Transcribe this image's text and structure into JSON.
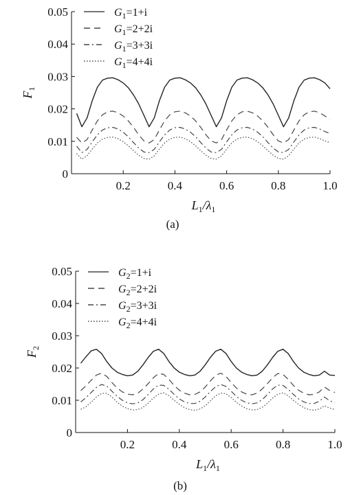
{
  "chart_data": [
    {
      "type": "line",
      "caption": "(a)",
      "ylabel": "F",
      "ylabel_sub": "1",
      "xlabel_main": "L",
      "xlabel_sub1": "1",
      "xlabel_sep": "/λ",
      "xlabel_sub2": "1",
      "xlim": [
        0,
        1.0
      ],
      "ylim": [
        0,
        0.05
      ],
      "xticks": [
        0.2,
        0.4,
        0.6,
        0.8,
        1.0
      ],
      "xtick_labels": [
        "0.2",
        "0.4",
        "0.6",
        "0.8",
        "1.0"
      ],
      "yticks": [
        0,
        0.01,
        0.02,
        0.03,
        0.04,
        0.05
      ],
      "ytick_labels": [
        "0",
        "0.01",
        "0.02",
        "0.03",
        "0.04",
        "0.05"
      ],
      "legend_position": "top-left",
      "series": [
        {
          "name": "G",
          "sub": "1",
          "value": "=1+i",
          "dash": "solid",
          "x": [
            0.02,
            0.04,
            0.06,
            0.08,
            0.1,
            0.12,
            0.14,
            0.16,
            0.18,
            0.2,
            0.22,
            0.24,
            0.26,
            0.28,
            0.3,
            0.32,
            0.34,
            0.36,
            0.38,
            0.4,
            0.42,
            0.44,
            0.46,
            0.48,
            0.5,
            0.52,
            0.54,
            0.56,
            0.58,
            0.6,
            0.62,
            0.64,
            0.66,
            0.68,
            0.7,
            0.72,
            0.74,
            0.76,
            0.78,
            0.8,
            0.82,
            0.84,
            0.86,
            0.88,
            0.9,
            0.92,
            0.94,
            0.96,
            0.98,
            1.0
          ],
          "y": [
            0.0186,
            0.0145,
            0.0172,
            0.0225,
            0.0267,
            0.0289,
            0.0295,
            0.0296,
            0.029,
            0.028,
            0.0265,
            0.0243,
            0.0215,
            0.018,
            0.0145,
            0.0172,
            0.0225,
            0.0267,
            0.0289,
            0.0295,
            0.0296,
            0.029,
            0.028,
            0.0265,
            0.0243,
            0.0215,
            0.018,
            0.0145,
            0.0172,
            0.0225,
            0.0267,
            0.0289,
            0.0295,
            0.0296,
            0.029,
            0.028,
            0.0265,
            0.0243,
            0.0215,
            0.018,
            0.0145,
            0.0172,
            0.0225,
            0.0267,
            0.0289,
            0.0295,
            0.0296,
            0.029,
            0.028,
            0.0262
          ]
        },
        {
          "name": "G",
          "sub": "1",
          "value": "=2+2i",
          "dash": "dashed",
          "x": [
            0.02,
            0.04,
            0.06,
            0.08,
            0.1,
            0.12,
            0.14,
            0.16,
            0.18,
            0.2,
            0.22,
            0.24,
            0.26,
            0.28,
            0.3,
            0.32,
            0.34,
            0.36,
            0.38,
            0.4,
            0.42,
            0.44,
            0.46,
            0.48,
            0.5,
            0.52,
            0.54,
            0.56,
            0.58,
            0.6,
            0.62,
            0.64,
            0.66,
            0.68,
            0.7,
            0.72,
            0.74,
            0.76,
            0.78,
            0.8,
            0.82,
            0.84,
            0.86,
            0.88,
            0.9,
            0.92,
            0.94,
            0.96,
            0.98,
            1.0
          ],
          "y": [
            0.0112,
            0.0095,
            0.0105,
            0.0135,
            0.0163,
            0.0182,
            0.0191,
            0.0193,
            0.0188,
            0.0178,
            0.0163,
            0.0143,
            0.012,
            0.0101,
            0.0095,
            0.0105,
            0.0135,
            0.0163,
            0.0182,
            0.0191,
            0.0193,
            0.0188,
            0.0178,
            0.0163,
            0.0143,
            0.012,
            0.0101,
            0.0095,
            0.0105,
            0.0135,
            0.0163,
            0.0182,
            0.0191,
            0.0193,
            0.0188,
            0.0178,
            0.0163,
            0.0143,
            0.012,
            0.0101,
            0.0095,
            0.0105,
            0.0135,
            0.0163,
            0.0182,
            0.0191,
            0.0193,
            0.0188,
            0.0178,
            0.0168
          ]
        },
        {
          "name": "G",
          "sub": "1",
          "value": "=3+3i",
          "dash": "dashdot",
          "x": [
            0.02,
            0.04,
            0.06,
            0.08,
            0.1,
            0.12,
            0.14,
            0.16,
            0.18,
            0.2,
            0.22,
            0.24,
            0.26,
            0.28,
            0.3,
            0.32,
            0.34,
            0.36,
            0.38,
            0.4,
            0.42,
            0.44,
            0.46,
            0.48,
            0.5,
            0.52,
            0.54,
            0.56,
            0.58,
            0.6,
            0.62,
            0.64,
            0.66,
            0.68,
            0.7,
            0.72,
            0.74,
            0.76,
            0.78,
            0.8,
            0.82,
            0.84,
            0.86,
            0.88,
            0.9,
            0.92,
            0.94,
            0.96,
            0.98,
            1.0
          ],
          "y": [
            0.0085,
            0.0065,
            0.0075,
            0.0098,
            0.012,
            0.0135,
            0.0142,
            0.0143,
            0.0138,
            0.0128,
            0.0114,
            0.0096,
            0.0079,
            0.0067,
            0.0065,
            0.0075,
            0.0098,
            0.012,
            0.0135,
            0.0142,
            0.0143,
            0.0138,
            0.0128,
            0.0114,
            0.0096,
            0.0079,
            0.0067,
            0.0065,
            0.0075,
            0.0098,
            0.012,
            0.0135,
            0.0142,
            0.0143,
            0.0138,
            0.0128,
            0.0114,
            0.0096,
            0.0079,
            0.0067,
            0.0065,
            0.0075,
            0.0098,
            0.012,
            0.0135,
            0.0142,
            0.0143,
            0.0138,
            0.013,
            0.0124
          ]
        },
        {
          "name": "G",
          "sub": "1",
          "value": "=4+4i",
          "dash": "dotted",
          "x": [
            0.02,
            0.04,
            0.06,
            0.08,
            0.1,
            0.12,
            0.14,
            0.16,
            0.18,
            0.2,
            0.22,
            0.24,
            0.26,
            0.28,
            0.3,
            0.32,
            0.34,
            0.36,
            0.38,
            0.4,
            0.42,
            0.44,
            0.46,
            0.48,
            0.5,
            0.52,
            0.54,
            0.56,
            0.58,
            0.6,
            0.62,
            0.64,
            0.66,
            0.68,
            0.7,
            0.72,
            0.74,
            0.76,
            0.78,
            0.8,
            0.82,
            0.84,
            0.86,
            0.88,
            0.9,
            0.92,
            0.94,
            0.96,
            0.98,
            1.0
          ],
          "y": [
            0.0062,
            0.0045,
            0.0055,
            0.0076,
            0.0095,
            0.0107,
            0.0112,
            0.0113,
            0.0108,
            0.0099,
            0.0086,
            0.0071,
            0.0057,
            0.0047,
            0.0045,
            0.0055,
            0.0076,
            0.0095,
            0.0107,
            0.0112,
            0.0113,
            0.0108,
            0.0099,
            0.0086,
            0.0071,
            0.0057,
            0.0047,
            0.0045,
            0.0055,
            0.0076,
            0.0095,
            0.0107,
            0.0112,
            0.0113,
            0.0108,
            0.0099,
            0.0086,
            0.0071,
            0.0057,
            0.0047,
            0.0045,
            0.0055,
            0.0076,
            0.0095,
            0.0107,
            0.0112,
            0.0113,
            0.0108,
            0.0101,
            0.0096
          ]
        }
      ]
    },
    {
      "type": "line",
      "caption": "(b)",
      "ylabel": "F",
      "ylabel_sub": "2",
      "xlabel_main": "L",
      "xlabel_sub1": "1",
      "xlabel_sep": "/λ",
      "xlabel_sub2": "1",
      "xlim": [
        0,
        1.0
      ],
      "ylim": [
        0,
        0.05
      ],
      "xticks": [
        0.2,
        0.4,
        0.6,
        0.8,
        1.0
      ],
      "xtick_labels": [
        "0.2",
        "0.4",
        "0.6",
        "0.8",
        "1.0"
      ],
      "yticks": [
        0,
        0.01,
        0.02,
        0.03,
        0.04,
        0.05
      ],
      "ytick_labels": [
        "0",
        "0.01",
        "0.02",
        "0.03",
        "0.04",
        "0.05"
      ],
      "legend_position": "top-left",
      "series": [
        {
          "name": "G",
          "sub": "2",
          "value": "=1+i",
          "dash": "solid",
          "x": [
            0.02,
            0.04,
            0.06,
            0.08,
            0.1,
            0.12,
            0.14,
            0.16,
            0.18,
            0.2,
            0.22,
            0.24,
            0.26,
            0.28,
            0.3,
            0.32,
            0.34,
            0.36,
            0.38,
            0.4,
            0.42,
            0.44,
            0.46,
            0.48,
            0.5,
            0.52,
            0.54,
            0.56,
            0.58,
            0.6,
            0.62,
            0.64,
            0.66,
            0.68,
            0.7,
            0.72,
            0.74,
            0.76,
            0.78,
            0.8,
            0.82,
            0.84,
            0.86,
            0.88,
            0.9,
            0.92,
            0.94,
            0.96,
            0.98,
            1.0
          ],
          "y": [
            0.0215,
            0.0235,
            0.0253,
            0.0258,
            0.0245,
            0.022,
            0.02,
            0.0187,
            0.018,
            0.0176,
            0.0178,
            0.019,
            0.021,
            0.0233,
            0.0252,
            0.0258,
            0.0245,
            0.022,
            0.02,
            0.0187,
            0.018,
            0.0176,
            0.0178,
            0.019,
            0.021,
            0.0233,
            0.0252,
            0.0258,
            0.0245,
            0.022,
            0.02,
            0.0187,
            0.018,
            0.0176,
            0.0178,
            0.019,
            0.021,
            0.0233,
            0.0252,
            0.0258,
            0.0245,
            0.022,
            0.02,
            0.0187,
            0.018,
            0.0176,
            0.0178,
            0.019,
            0.0178,
            0.0177
          ]
        },
        {
          "name": "G",
          "sub": "2",
          "value": "=2+2i",
          "dash": "dashed",
          "x": [
            0.02,
            0.04,
            0.06,
            0.08,
            0.1,
            0.12,
            0.14,
            0.16,
            0.18,
            0.2,
            0.22,
            0.24,
            0.26,
            0.28,
            0.3,
            0.32,
            0.34,
            0.36,
            0.38,
            0.4,
            0.42,
            0.44,
            0.46,
            0.48,
            0.5,
            0.52,
            0.54,
            0.56,
            0.58,
            0.6,
            0.62,
            0.64,
            0.66,
            0.68,
            0.7,
            0.72,
            0.74,
            0.76,
            0.78,
            0.8,
            0.82,
            0.84,
            0.86,
            0.88,
            0.9,
            0.92,
            0.94,
            0.96,
            0.98,
            1.0
          ],
          "y": [
            0.013,
            0.0145,
            0.0162,
            0.0178,
            0.0184,
            0.0174,
            0.0155,
            0.0138,
            0.0126,
            0.0119,
            0.0117,
            0.0122,
            0.0135,
            0.0152,
            0.017,
            0.0183,
            0.018,
            0.0165,
            0.0146,
            0.0131,
            0.0122,
            0.0117,
            0.0118,
            0.0126,
            0.0141,
            0.016,
            0.0177,
            0.0184,
            0.0174,
            0.0155,
            0.0138,
            0.0126,
            0.0119,
            0.0117,
            0.0122,
            0.0135,
            0.0152,
            0.017,
            0.0183,
            0.018,
            0.0165,
            0.0146,
            0.0131,
            0.0122,
            0.0117,
            0.0118,
            0.0126,
            0.0141,
            0.013,
            0.0124
          ]
        },
        {
          "name": "G",
          "sub": "2",
          "value": "=3+3i",
          "dash": "dashdot",
          "x": [
            0.02,
            0.04,
            0.06,
            0.08,
            0.1,
            0.12,
            0.14,
            0.16,
            0.18,
            0.2,
            0.22,
            0.24,
            0.26,
            0.28,
            0.3,
            0.32,
            0.34,
            0.36,
            0.38,
            0.4,
            0.42,
            0.44,
            0.46,
            0.48,
            0.5,
            0.52,
            0.54,
            0.56,
            0.58,
            0.6,
            0.62,
            0.64,
            0.66,
            0.68,
            0.7,
            0.72,
            0.74,
            0.76,
            0.78,
            0.8,
            0.82,
            0.84,
            0.86,
            0.88,
            0.9,
            0.92,
            0.94,
            0.96,
            0.98,
            1.0
          ],
          "y": [
            0.0095,
            0.0108,
            0.0124,
            0.014,
            0.0149,
            0.0144,
            0.0128,
            0.0112,
            0.01,
            0.0092,
            0.0089,
            0.0092,
            0.0102,
            0.0118,
            0.0135,
            0.0147,
            0.0146,
            0.0134,
            0.0118,
            0.0104,
            0.0095,
            0.009,
            0.009,
            0.0097,
            0.011,
            0.0127,
            0.0142,
            0.0149,
            0.0143,
            0.0128,
            0.0112,
            0.01,
            0.0092,
            0.0089,
            0.0092,
            0.0102,
            0.0118,
            0.0135,
            0.0147,
            0.0146,
            0.0134,
            0.0118,
            0.0104,
            0.0095,
            0.009,
            0.009,
            0.0097,
            0.011,
            0.0098,
            0.0093
          ]
        },
        {
          "name": "G",
          "sub": "2",
          "value": "=4+4i",
          "dash": "dotted",
          "x": [
            0.02,
            0.04,
            0.06,
            0.08,
            0.1,
            0.12,
            0.14,
            0.16,
            0.18,
            0.2,
            0.22,
            0.24,
            0.26,
            0.28,
            0.3,
            0.32,
            0.34,
            0.36,
            0.38,
            0.4,
            0.42,
            0.44,
            0.46,
            0.48,
            0.5,
            0.52,
            0.54,
            0.56,
            0.58,
            0.6,
            0.62,
            0.64,
            0.66,
            0.68,
            0.7,
            0.72,
            0.74,
            0.76,
            0.78,
            0.8,
            0.82,
            0.84,
            0.86,
            0.88,
            0.9,
            0.92,
            0.94,
            0.96,
            0.98,
            1.0
          ],
          "y": [
            0.0072,
            0.008,
            0.0094,
            0.011,
            0.0121,
            0.0122,
            0.011,
            0.0094,
            0.0082,
            0.0074,
            0.007,
            0.0071,
            0.0078,
            0.0091,
            0.0107,
            0.0119,
            0.0123,
            0.0114,
            0.01,
            0.0087,
            0.0077,
            0.0071,
            0.0069,
            0.0073,
            0.0083,
            0.0098,
            0.0114,
            0.0122,
            0.012,
            0.0108,
            0.0094,
            0.0082,
            0.0074,
            0.007,
            0.0071,
            0.0078,
            0.0091,
            0.0107,
            0.0119,
            0.0123,
            0.0114,
            0.01,
            0.0087,
            0.0077,
            0.0071,
            0.0069,
            0.0073,
            0.0083,
            0.0076,
            0.0071
          ]
        }
      ]
    }
  ]
}
